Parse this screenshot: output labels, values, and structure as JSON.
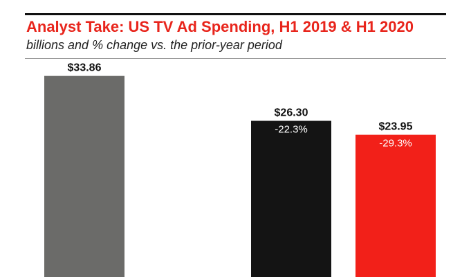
{
  "chart_data": {
    "type": "bar",
    "title": "Analyst Take: US TV Ad Spending, H1 2019 & H1 2020",
    "subtitle": "billions and % change vs. the prior-year period",
    "categories": [
      "",
      "",
      ""
    ],
    "values": [
      33.86,
      26.3,
      23.95
    ],
    "value_labels": [
      "$33.86",
      "$26.30",
      "$23.95"
    ],
    "change_labels": [
      "",
      "-22.3%",
      "-29.3%"
    ],
    "bar_colors": [
      "#6b6b69",
      "#141414",
      "#f22019"
    ],
    "xlabel": "",
    "ylabel": "",
    "ylim": [
      0,
      38
    ],
    "grid": false,
    "legend": "none"
  },
  "colors": {
    "title": "#e8251c",
    "rule": "#111111",
    "value_label": "#111111",
    "change_label": "#ffffff"
  }
}
